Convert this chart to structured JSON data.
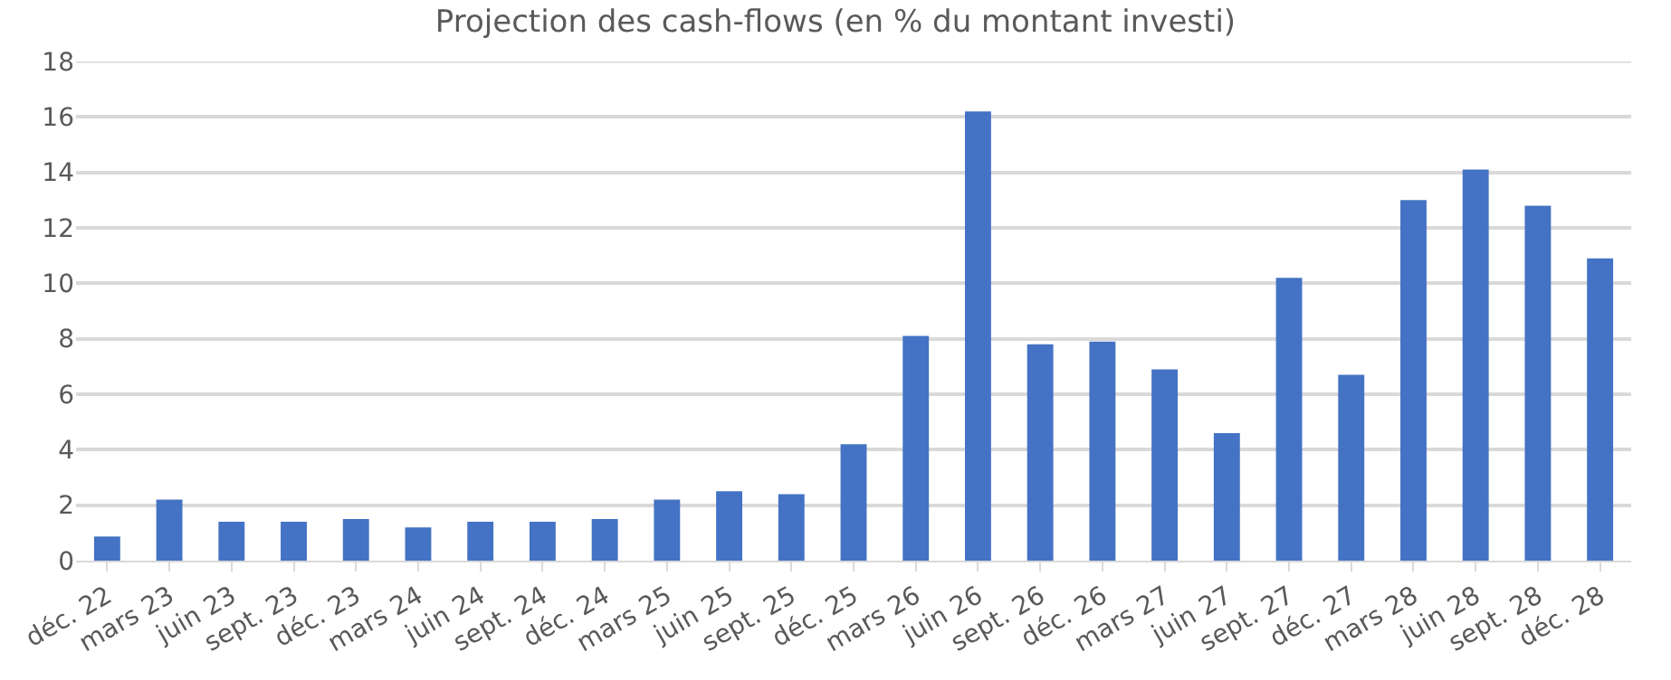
{
  "chart_data": {
    "type": "bar",
    "title": "Projection des cash-flows (en % du montant investi)",
    "categories": [
      "déc. 22",
      "mars 23",
      "juin 23",
      "sept. 23",
      "déc. 23",
      "mars 24",
      "juin 24",
      "sept. 24",
      "déc. 24",
      "mars 25",
      "juin 25",
      "sept. 25",
      "déc. 25",
      "mars 26",
      "juin 26",
      "sept. 26",
      "déc. 26",
      "mars 27",
      "juin 27",
      "sept. 27",
      "déc. 27",
      "mars 28",
      "juin 28",
      "sept. 28",
      "déc. 28"
    ],
    "values": [
      0.87,
      2.2,
      1.4,
      1.4,
      1.5,
      1.2,
      1.4,
      1.4,
      1.5,
      2.2,
      2.5,
      2.4,
      4.2,
      8.1,
      16.2,
      7.8,
      7.9,
      6.9,
      4.6,
      10.2,
      6.7,
      13.0,
      14.1,
      12.8,
      10.9
    ],
    "color": "#4472c4",
    "ylim": [
      0,
      18
    ],
    "yticks": [
      0,
      2,
      4,
      6,
      8,
      10,
      12,
      14,
      16,
      18
    ],
    "grid": "y"
  }
}
